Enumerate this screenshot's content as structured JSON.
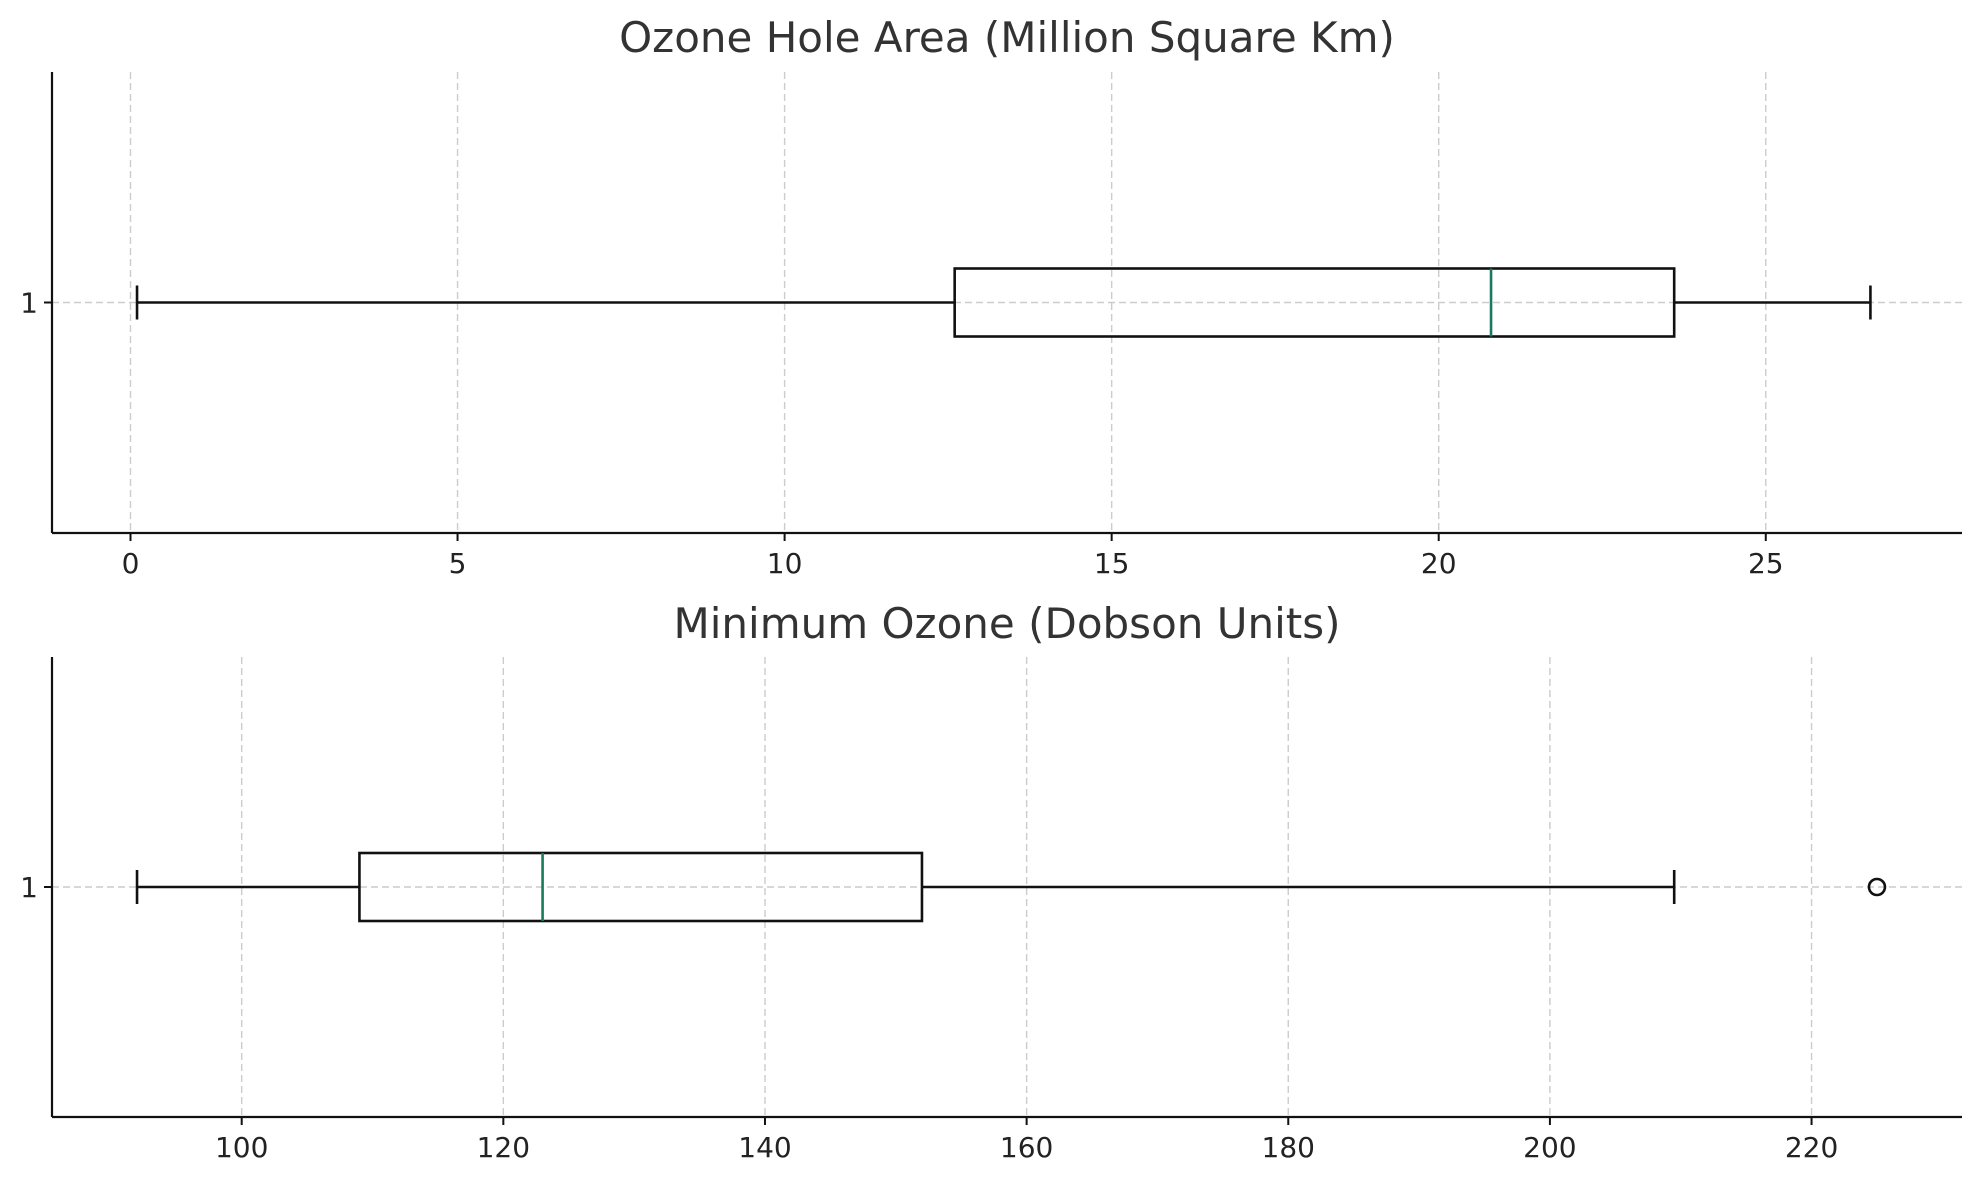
{
  "chart_data": [
    {
      "type": "boxplot",
      "orientation": "horizontal",
      "title": "Ozone Hole Area (Million Square Km)",
      "categories": [
        "1"
      ],
      "xlim": [
        -1.2,
        28
      ],
      "xticks": [
        0,
        5,
        10,
        15,
        20,
        25
      ],
      "grid": true,
      "boxes": [
        {
          "label": "1",
          "whisker_low": 0.1,
          "q1": 12.6,
          "median": 20.8,
          "q3": 23.6,
          "whisker_high": 26.6,
          "fliers": []
        }
      ],
      "median_color": "#1a7a5e"
    },
    {
      "type": "boxplot",
      "orientation": "horizontal",
      "title": "Minimum Ozone (Dobson Units)",
      "categories": [
        "1"
      ],
      "xlim": [
        85.5,
        231.5
      ],
      "xticks": [
        100,
        120,
        140,
        160,
        180,
        200,
        220
      ],
      "grid": true,
      "boxes": [
        {
          "label": "1",
          "whisker_low": 92,
          "q1": 109,
          "median": 123,
          "q3": 152,
          "whisker_high": 209.5,
          "fliers": [
            225
          ]
        }
      ],
      "median_color": "#1a7a5e"
    }
  ]
}
